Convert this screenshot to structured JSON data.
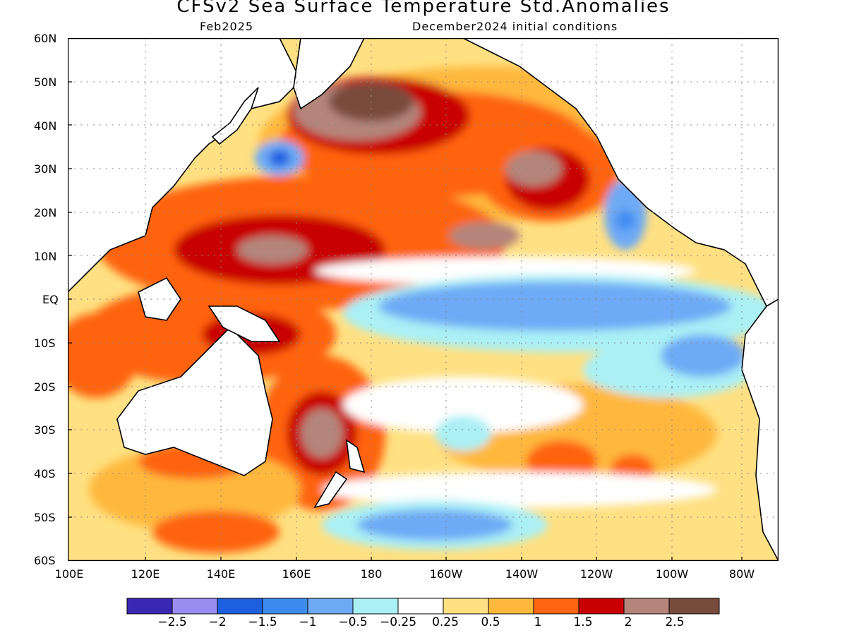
{
  "title": "CFSv2 Sea Surface Temperature Std.Anomalies",
  "subtitle_left": "Feb2025",
  "subtitle_right": "December2024 initial conditions",
  "lat_labels": [
    "60N",
    "50N",
    "40N",
    "30N",
    "20N",
    "10N",
    "EQ",
    "10S",
    "20S",
    "30S",
    "40S",
    "50S",
    "60S"
  ],
  "lon_labels": [
    "100E",
    "120E",
    "140E",
    "160E",
    "180",
    "160W",
    "140W",
    "120W",
    "100W",
    "80W"
  ],
  "colorbar": {
    "colors": [
      "#3a28b4",
      "#9b8cf2",
      "#1e5fe0",
      "#3c8cf0",
      "#6eaaf5",
      "#aaf0f5",
      "#ffffff",
      "#ffe082",
      "#ffb83c",
      "#ff6410",
      "#c80000",
      "#b4857a",
      "#784c3c"
    ],
    "labels": [
      "−2.5",
      "−2",
      "−1.5",
      "−1",
      "−0.5",
      "−0.25",
      "0.25",
      "0.5",
      "1",
      "1.5",
      "2",
      "2.5"
    ]
  }
}
